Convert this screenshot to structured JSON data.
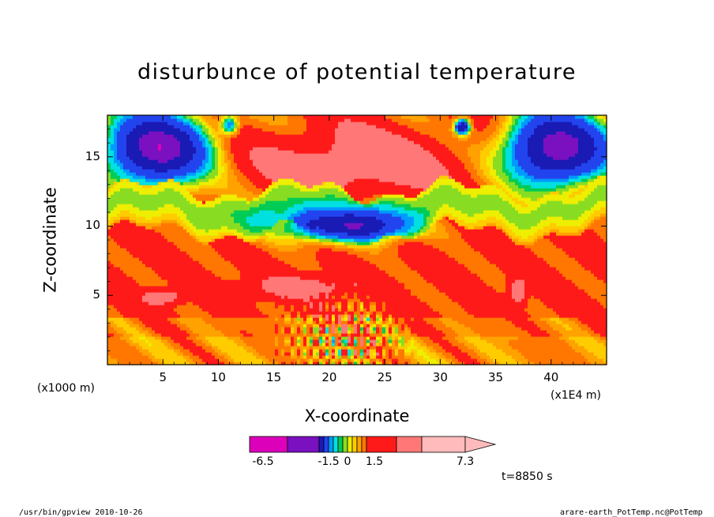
{
  "chart_data": {
    "type": "heatmap",
    "title": "disturbunce of potential temperature",
    "xlabel": "X-coordinate",
    "ylabel": "Z-coordinate",
    "x_unit_label": "(x1000 m)",
    "x_scale_label": "(x1E4 m)",
    "xlim": [
      0,
      45
    ],
    "ylim": [
      0,
      18
    ],
    "x_ticks": [
      5,
      10,
      15,
      20,
      25,
      30,
      35,
      40
    ],
    "y_ticks": [
      5,
      10,
      15
    ],
    "colorbar": {
      "colors": [
        "#dd00bb",
        "#7a10c0",
        "#1a1ab5",
        "#2244ee",
        "#0099ff",
        "#00e0e0",
        "#00cc55",
        "#88dd22",
        "#eeee00",
        "#ffcc00",
        "#ffa200",
        "#ff7700",
        "#ff1a1a",
        "#ff7777",
        "#ffbbbb"
      ],
      "tick_labels": [
        "-6.5",
        "-1.5",
        "0",
        "1.5",
        "7.3"
      ],
      "tick_values": [
        -6.5,
        -1.5,
        0,
        1.5,
        7.3
      ],
      "extend": "max"
    },
    "grid": false
  },
  "annotations": {
    "time": "t=8850 s",
    "footer_left": "/usr/bin/gpview  2010-10-26",
    "footer_right": "arare-earth_PotTemp.nc@PotTemp"
  }
}
